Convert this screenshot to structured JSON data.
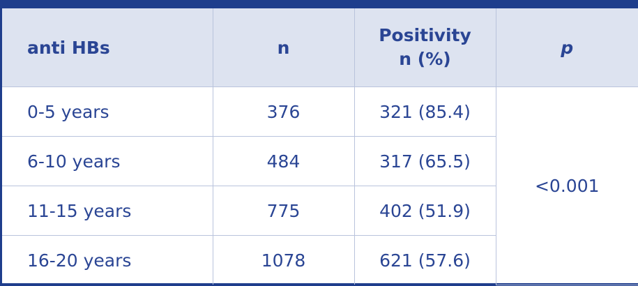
{
  "table": {
    "header": [
      "anti HBs",
      "n",
      [
        "Positivity",
        "n (%)"
      ],
      "p"
    ],
    "rows": [
      [
        "0-5 years",
        "376",
        "321 (85.4)"
      ],
      [
        "6-10 years",
        "484",
        "317 (65.5)"
      ],
      [
        "11-15 years",
        "775",
        "402 (51.9)"
      ],
      [
        "16-20 years",
        "1078",
        "621 (57.6)"
      ]
    ],
    "p_value": "<0.001"
  }
}
